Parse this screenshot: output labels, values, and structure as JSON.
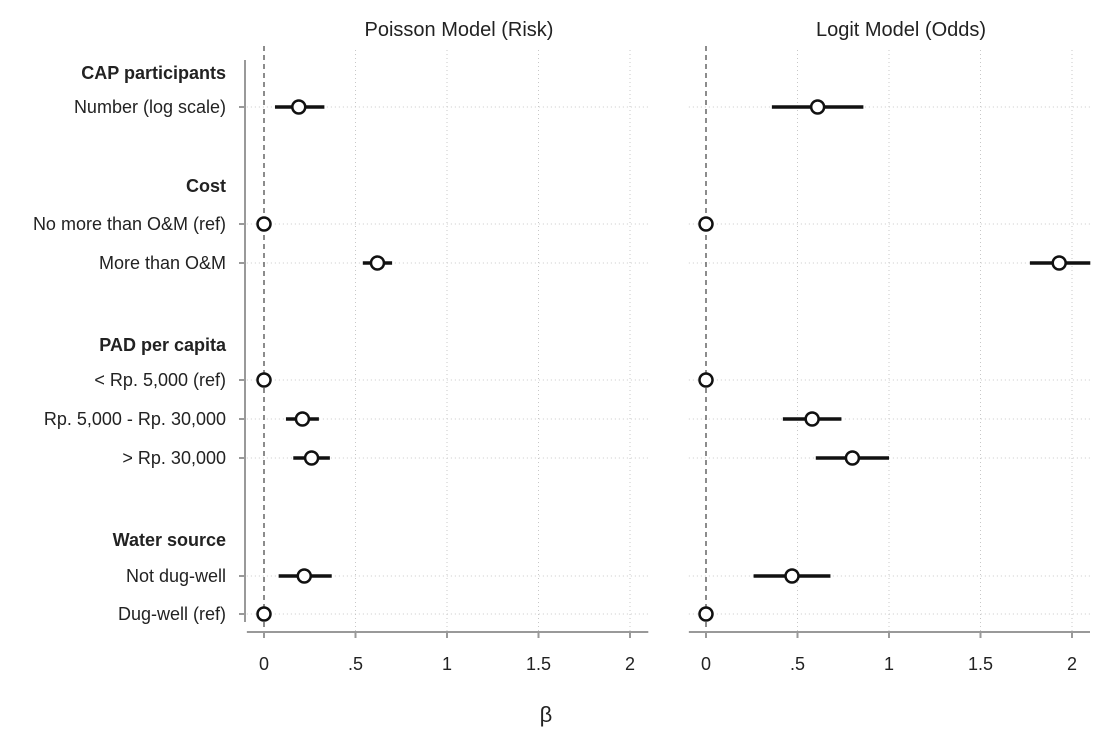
{
  "chart_data": {
    "type": "scatter",
    "subtype": "coefficient-plot",
    "xlabel": "β",
    "xlim": [
      -0.05,
      2.1
    ],
    "xticks": [
      {
        "value": 0,
        "label": "0"
      },
      {
        "value": 0.5,
        "label": ".5"
      },
      {
        "value": 1,
        "label": "1"
      },
      {
        "value": 1.5,
        "label": "1.5"
      },
      {
        "value": 2,
        "label": "2"
      }
    ],
    "grid": true,
    "reference_line": 0,
    "rows": [
      {
        "label": "CAP participants",
        "is_header": true
      },
      {
        "label": "Number (log scale)"
      },
      {
        "label": "Cost",
        "is_header": true
      },
      {
        "label": "No more than O&M (ref)"
      },
      {
        "label": "More than O&M"
      },
      {
        "label": "PAD per capita",
        "is_header": true
      },
      {
        "label": "< Rp. 5,000 (ref)"
      },
      {
        "label": "Rp. 5,000 - Rp. 30,000"
      },
      {
        "label": "> Rp. 30,000"
      },
      {
        "label": "Water source",
        "is_header": true
      },
      {
        "label": "Not dug-well"
      },
      {
        "label": "Dug-well (ref)"
      }
    ],
    "panels": [
      {
        "title": "Poisson Model (Risk)",
        "estimates": [
          {
            "row": 1,
            "est": 0.19,
            "lo": 0.06,
            "hi": 0.33
          },
          {
            "row": 3,
            "est": 0.0,
            "lo": 0.0,
            "hi": 0.0
          },
          {
            "row": 4,
            "est": 0.62,
            "lo": 0.54,
            "hi": 0.7
          },
          {
            "row": 6,
            "est": 0.0,
            "lo": 0.0,
            "hi": 0.0
          },
          {
            "row": 7,
            "est": 0.21,
            "lo": 0.12,
            "hi": 0.3
          },
          {
            "row": 8,
            "est": 0.26,
            "lo": 0.16,
            "hi": 0.36
          },
          {
            "row": 10,
            "est": 0.22,
            "lo": 0.08,
            "hi": 0.37
          },
          {
            "row": 11,
            "est": 0.0,
            "lo": 0.0,
            "hi": 0.0
          }
        ]
      },
      {
        "title": "Logit Model (Odds)",
        "estimates": [
          {
            "row": 1,
            "est": 0.61,
            "lo": 0.36,
            "hi": 0.86
          },
          {
            "row": 3,
            "est": 0.0,
            "lo": 0.0,
            "hi": 0.0
          },
          {
            "row": 4,
            "est": 1.93,
            "lo": 1.77,
            "hi": 2.1
          },
          {
            "row": 6,
            "est": 0.0,
            "lo": 0.0,
            "hi": 0.0
          },
          {
            "row": 7,
            "est": 0.58,
            "lo": 0.42,
            "hi": 0.74
          },
          {
            "row": 8,
            "est": 0.8,
            "lo": 0.6,
            "hi": 1.0
          },
          {
            "row": 10,
            "est": 0.47,
            "lo": 0.26,
            "hi": 0.68
          },
          {
            "row": 11,
            "est": 0.0,
            "lo": 0.0,
            "hi": 0.0
          }
        ]
      }
    ]
  }
}
